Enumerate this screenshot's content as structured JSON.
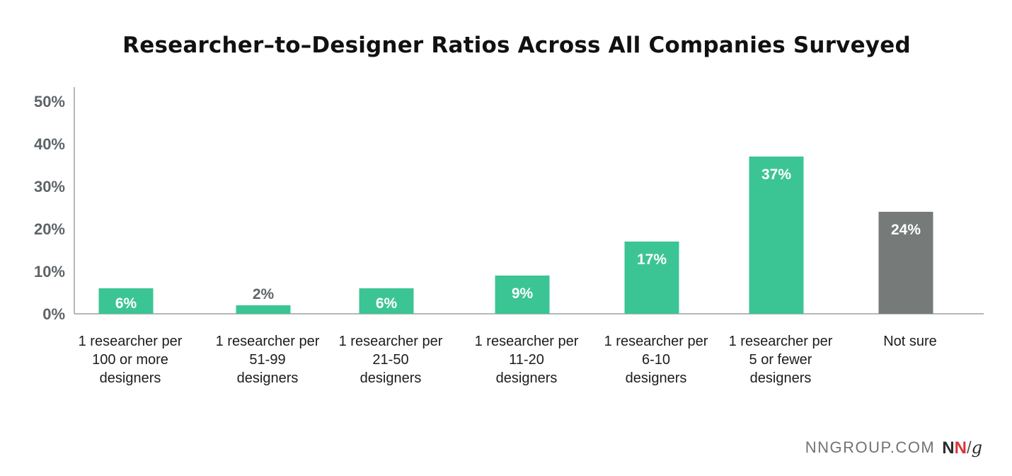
{
  "chart_data": {
    "type": "bar",
    "title": "Researcher–to–Designer Ratios Across All Companies Surveyed",
    "xlabel": "",
    "ylabel": "",
    "ylim": [
      0,
      50
    ],
    "yticks": [
      "0%",
      "10%",
      "20%",
      "30%",
      "40%",
      "50%"
    ],
    "grid": false,
    "categories": [
      [
        "1 researcher per",
        "100 or more",
        "designers"
      ],
      [
        "1 researcher per",
        "51-99",
        "designers"
      ],
      [
        "1 researcher per",
        "21-50",
        "designers"
      ],
      [
        "1 researcher per",
        "11-20",
        "designers"
      ],
      [
        "1 researcher per",
        "6-10",
        "designers"
      ],
      [
        "1 researcher per",
        "5 or fewer",
        "designers"
      ],
      [
        "Not sure"
      ]
    ],
    "values": [
      6,
      2,
      6,
      9,
      17,
      37,
      24
    ],
    "data_labels": [
      "6%",
      "2%",
      "6%",
      "9%",
      "17%",
      "37%",
      "24%"
    ],
    "colors": [
      "#3cc594",
      "#3cc594",
      "#3cc594",
      "#3cc594",
      "#3cc594",
      "#3cc594",
      "#767b79"
    ]
  },
  "footer": {
    "site": "NNGROUP.COM",
    "logo_n1": "N",
    "logo_n2": "N",
    "logo_slash": "/",
    "logo_g": "g"
  }
}
